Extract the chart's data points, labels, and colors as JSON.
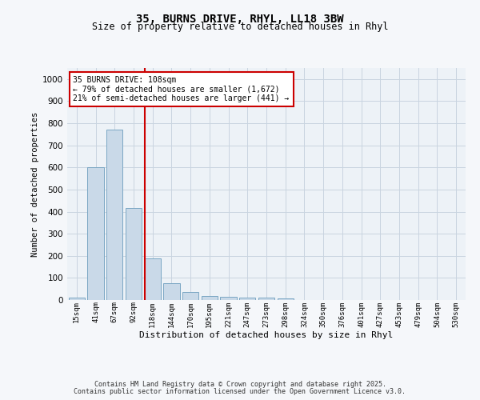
{
  "title1": "35, BURNS DRIVE, RHYL, LL18 3BW",
  "title2": "Size of property relative to detached houses in Rhyl",
  "xlabel": "Distribution of detached houses by size in Rhyl",
  "ylabel": "Number of detached properties",
  "bar_labels": [
    "15sqm",
    "41sqm",
    "67sqm",
    "92sqm",
    "118sqm",
    "144sqm",
    "170sqm",
    "195sqm",
    "221sqm",
    "247sqm",
    "273sqm",
    "298sqm",
    "324sqm",
    "350sqm",
    "376sqm",
    "401sqm",
    "427sqm",
    "453sqm",
    "479sqm",
    "504sqm",
    "530sqm"
  ],
  "bar_values": [
    12,
    600,
    770,
    415,
    190,
    77,
    37,
    18,
    14,
    11,
    12,
    7,
    0,
    0,
    0,
    0,
    0,
    0,
    0,
    0,
    0
  ],
  "bar_color": "#c9d9e8",
  "bar_edge_color": "#7ba7c4",
  "vline_index": 4,
  "vline_color": "#cc0000",
  "annotation_text": "35 BURNS DRIVE: 108sqm\n← 79% of detached houses are smaller (1,672)\n21% of semi-detached houses are larger (441) →",
  "annotation_box_color": "#ffffff",
  "annotation_box_edge": "#cc0000",
  "ylim": [
    0,
    1050
  ],
  "yticks": [
    0,
    100,
    200,
    300,
    400,
    500,
    600,
    700,
    800,
    900,
    1000
  ],
  "footer1": "Contains HM Land Registry data © Crown copyright and database right 2025.",
  "footer2": "Contains public sector information licensed under the Open Government Licence v3.0.",
  "bg_color": "#edf2f7",
  "fig_bg_color": "#f5f7fa",
  "grid_color": "#c8d4e0"
}
